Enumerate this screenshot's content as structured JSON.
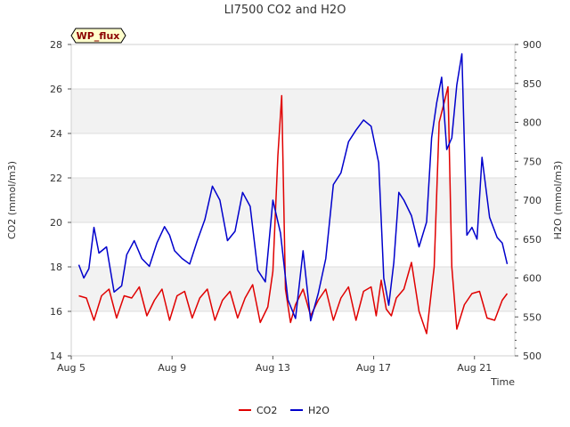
{
  "chart_data": {
    "type": "line",
    "title": "LI7500 CO2 and H2O",
    "site_label": "WP_flux",
    "xlabel": "Time",
    "ylabel_left": "CO2 (mmol/m3)",
    "ylabel_right": "H2O (mmol/m3)",
    "x_range": [
      5.0,
      22.6
    ],
    "x_ticks": [
      5,
      9,
      13,
      17,
      21
    ],
    "x_tick_labels": [
      "Aug 5",
      "Aug 9",
      "Aug 13",
      "Aug 17",
      "Aug 21"
    ],
    "ylim_left": [
      14,
      28
    ],
    "y_ticks_left": [
      14,
      16,
      18,
      20,
      22,
      24,
      26,
      28
    ],
    "ylim_right": [
      500,
      900
    ],
    "y_ticks_right": [
      500,
      550,
      600,
      650,
      700,
      750,
      800,
      850,
      900
    ],
    "shaded_bands_left": [
      [
        16,
        18
      ],
      [
        20,
        22
      ],
      [
        24,
        26
      ]
    ],
    "series": [
      {
        "name": "CO2",
        "axis": "left",
        "color": "#e00000",
        "x": [
          5.3,
          5.6,
          5.9,
          6.2,
          6.5,
          6.8,
          7.1,
          7.4,
          7.7,
          8.0,
          8.3,
          8.6,
          8.9,
          9.2,
          9.5,
          9.8,
          10.1,
          10.4,
          10.7,
          11.0,
          11.3,
          11.6,
          11.9,
          12.2,
          12.5,
          12.8,
          13.0,
          13.2,
          13.35,
          13.5,
          13.7,
          13.9,
          14.2,
          14.5,
          14.8,
          15.1,
          15.4,
          15.7,
          16.0,
          16.3,
          16.6,
          16.9,
          17.1,
          17.3,
          17.5,
          17.7,
          17.9,
          18.2,
          18.5,
          18.8,
          19.1,
          19.4,
          19.6,
          19.8,
          19.95,
          20.1,
          20.3,
          20.6,
          20.9,
          21.2,
          21.5,
          21.8,
          22.1,
          22.3
        ],
        "values": [
          16.7,
          16.6,
          15.6,
          16.7,
          17.0,
          15.7,
          16.7,
          16.6,
          17.1,
          15.8,
          16.5,
          17.0,
          15.6,
          16.7,
          16.9,
          15.7,
          16.6,
          17.0,
          15.6,
          16.5,
          16.9,
          15.7,
          16.6,
          17.2,
          15.5,
          16.2,
          17.8,
          23.0,
          25.7,
          17.0,
          15.5,
          16.3,
          17.0,
          15.8,
          16.5,
          17.0,
          15.6,
          16.6,
          17.1,
          15.6,
          16.9,
          17.1,
          15.8,
          17.4,
          16.1,
          15.8,
          16.6,
          17.0,
          18.2,
          16.0,
          15.0,
          18.0,
          24.5,
          25.4,
          26.1,
          18.0,
          15.2,
          16.3,
          16.8,
          16.9,
          15.7,
          15.6,
          16.5,
          16.8
        ]
      },
      {
        "name": "H2O",
        "axis": "right",
        "color": "#0000cc",
        "x": [
          5.3,
          5.5,
          5.7,
          5.9,
          6.1,
          6.4,
          6.7,
          7.0,
          7.2,
          7.5,
          7.8,
          8.1,
          8.4,
          8.7,
          8.9,
          9.1,
          9.4,
          9.7,
          10.0,
          10.3,
          10.6,
          10.9,
          11.2,
          11.5,
          11.8,
          12.1,
          12.4,
          12.7,
          13.0,
          13.3,
          13.6,
          13.9,
          14.2,
          14.5,
          14.8,
          15.1,
          15.4,
          15.7,
          16.0,
          16.3,
          16.6,
          16.9,
          17.2,
          17.4,
          17.6,
          17.8,
          18.0,
          18.2,
          18.5,
          18.8,
          19.1,
          19.3,
          19.5,
          19.7,
          19.9,
          20.1,
          20.3,
          20.5,
          20.7,
          20.9,
          21.1,
          21.3,
          21.6,
          21.9,
          22.1,
          22.3
        ],
        "values": [
          617,
          600,
          612,
          665,
          632,
          640,
          582,
          590,
          630,
          648,
          625,
          615,
          645,
          666,
          655,
          635,
          625,
          618,
          648,
          675,
          718,
          700,
          648,
          660,
          710,
          692,
          610,
          595,
          700,
          658,
          572,
          548,
          635,
          545,
          580,
          625,
          720,
          735,
          775,
          790,
          803,
          795,
          748,
          600,
          565,
          620,
          710,
          700,
          680,
          640,
          672,
          780,
          825,
          858,
          765,
          780,
          848,
          888,
          655,
          665,
          650,
          755,
          678,
          652,
          645,
          618
        ]
      }
    ],
    "legend": [
      "CO2",
      "H2O"
    ],
    "legend_position": "bottom-center"
  }
}
